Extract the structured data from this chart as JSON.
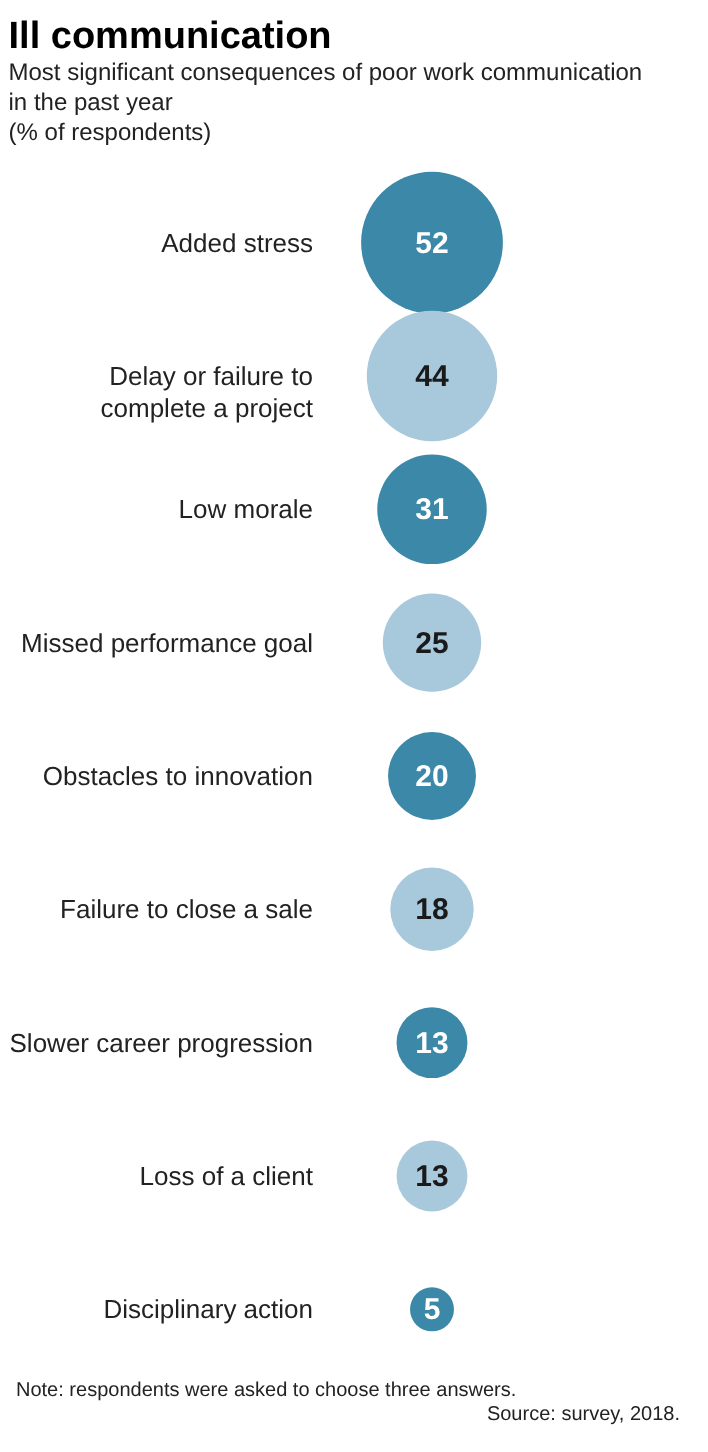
{
  "chart_data": {
    "type": "other",
    "title": "Ill communication",
    "subtitle": "Most significant consequences of poor work communication in the past year",
    "categories": [
      "Added stress",
      "Delay or failure to complete a project",
      "Low morale",
      "Missed performance goal",
      "Obstacles to innovation",
      "Failure to close a sale",
      "Slower career progression",
      "Loss of a client",
      "Disciplinary action"
    ],
    "values": [
      52,
      44,
      31,
      25,
      20,
      18,
      13,
      13,
      5
    ],
    "colors": [
      "#3b88a8",
      "#a8c8dc",
      "#3b88a8",
      "#a8c8dc",
      "#3b88a8",
      "#a8c8dc",
      "#3b88a8",
      "#a8c8dc",
      "#3b88a8"
    ],
    "data_labels": true,
    "annotations": [
      "(% of respondents)",
      "Note: respondents were asked to choose three answers.",
      "Source: survey, 2018."
    ]
  }
}
